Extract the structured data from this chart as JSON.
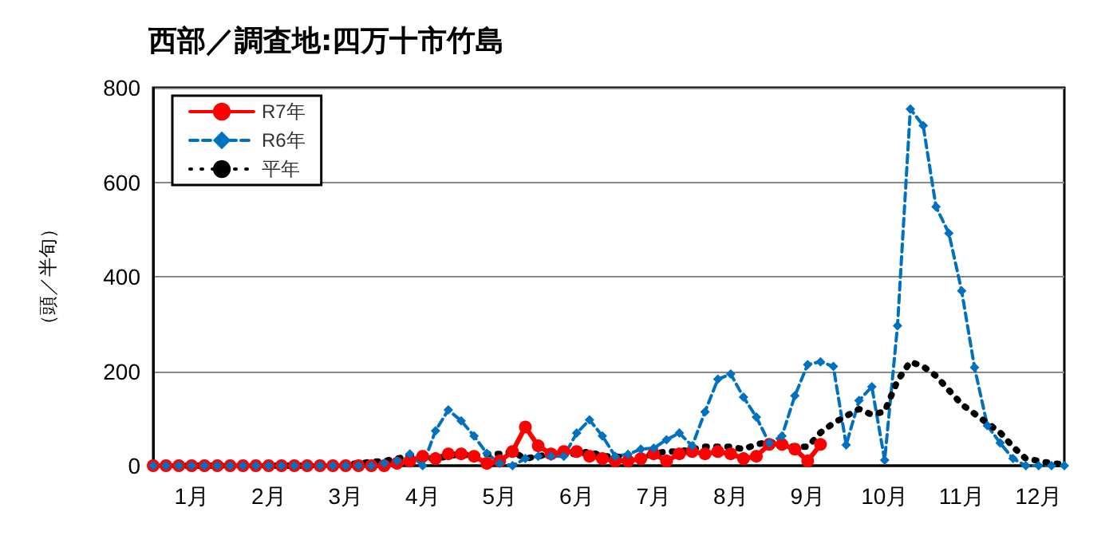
{
  "chart_data": {
    "type": "line",
    "title": "西部／調査地:四万十市竹島",
    "ylabel": "（頭／半旬）",
    "categories": [
      null,
      null,
      null,
      "1月",
      null,
      null,
      null,
      null,
      null,
      "2月",
      null,
      null,
      null,
      null,
      null,
      "3月",
      null,
      null,
      null,
      null,
      null,
      "4月",
      null,
      null,
      null,
      null,
      null,
      "5月",
      null,
      null,
      null,
      null,
      null,
      "6月",
      null,
      null,
      null,
      null,
      null,
      "7月",
      null,
      null,
      null,
      null,
      null,
      "8月",
      null,
      null,
      null,
      null,
      null,
      "9月",
      null,
      null,
      null,
      null,
      null,
      "10月",
      null,
      null,
      null,
      null,
      null,
      "11月",
      null,
      null,
      null,
      null,
      null,
      "12月",
      null,
      null
    ],
    "series": [
      {
        "name": "R7年",
        "color": "#ff0000",
        "marker": "circle",
        "line_style": "solid",
        "values": [
          0,
          0,
          0,
          0,
          0,
          0,
          0,
          0,
          0,
          0,
          0,
          0,
          0,
          0,
          0,
          0,
          0,
          0,
          0,
          5,
          10,
          20,
          15,
          25,
          25,
          20,
          5,
          10,
          30,
          82,
          42,
          25,
          30,
          30,
          20,
          15,
          10,
          10,
          15,
          25,
          10,
          25,
          30,
          25,
          30,
          25,
          15,
          20,
          45,
          45,
          35,
          10,
          45,
          null,
          null,
          null,
          null,
          null,
          null,
          null,
          null,
          null,
          null,
          null,
          null,
          null,
          null,
          null,
          null,
          null,
          null,
          null
        ]
      },
      {
        "name": "R6年",
        "color": "#0070c0",
        "marker": "diamond",
        "line_style": "dashed",
        "values": [
          0,
          0,
          0,
          0,
          0,
          0,
          0,
          0,
          0,
          0,
          0,
          0,
          0,
          0,
          0,
          0,
          0,
          0,
          5,
          10,
          25,
          0,
          74,
          118,
          95,
          63,
          26,
          5,
          0,
          15,
          20,
          20,
          20,
          69,
          97,
          63,
          20,
          24,
          35,
          37,
          55,
          69,
          42,
          114,
          183,
          194,
          145,
          103,
          48,
          63,
          148,
          214,
          220,
          210,
          44,
          138,
          167,
          12,
          296,
          755,
          720,
          548,
          492,
          370,
          208,
          85,
          48,
          15,
          0,
          0,
          0,
          0
        ]
      },
      {
        "name": "平年",
        "color": "#000000",
        "marker": "none",
        "line_style": "dotted",
        "values": [
          0,
          0,
          0,
          0,
          0,
          0,
          0,
          0,
          0,
          0,
          0,
          0,
          0,
          0,
          0,
          3,
          5,
          8,
          10,
          15,
          20,
          15,
          15,
          20,
          25,
          20,
          25,
          25,
          30,
          15,
          20,
          25,
          25,
          25,
          30,
          20,
          20,
          15,
          20,
          25,
          30,
          30,
          35,
          40,
          40,
          40,
          35,
          45,
          50,
          45,
          40,
          40,
          70,
          90,
          105,
          120,
          108,
          115,
          180,
          220,
          210,
          190,
          160,
          130,
          110,
          90,
          70,
          40,
          15,
          10,
          5,
          3
        ]
      }
    ],
    "ylim": [
      0,
      800
    ],
    "yticks": [
      0,
      200,
      400,
      600,
      800
    ],
    "grid": "y",
    "legend": "top left"
  }
}
